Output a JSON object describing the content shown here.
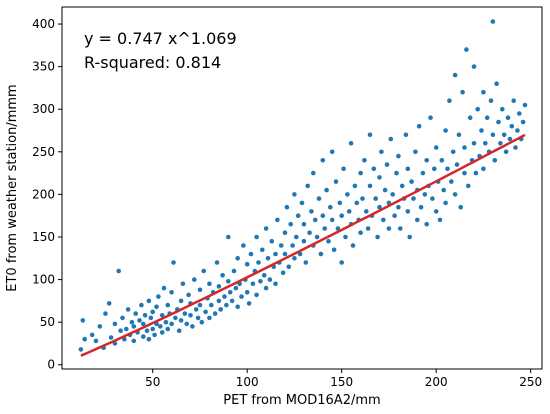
{
  "chart_data": {
    "type": "scatter",
    "title": "",
    "xlabel": "PET from MOD16A2/mm",
    "ylabel": "ET0 from weather station/mmm",
    "xlim": [
      2,
      256
    ],
    "ylim": [
      -5,
      420
    ],
    "x_ticks": [
      50,
      100,
      150,
      200,
      250
    ],
    "y_ticks": [
      0,
      50,
      100,
      150,
      200,
      250,
      300,
      350,
      400
    ],
    "grid": false,
    "annotations": [
      "y = 0.747 x^1.069",
      "R-squared: 0.814"
    ],
    "fit": {
      "a": 0.747,
      "b": 1.069,
      "x_range": [
        12,
        247
      ]
    },
    "colors": {
      "points": "#1f77b4",
      "fit_line": "#d62728"
    },
    "points": [
      [
        12,
        18
      ],
      [
        13,
        52
      ],
      [
        14,
        30
      ],
      [
        18,
        35
      ],
      [
        20,
        28
      ],
      [
        22,
        45
      ],
      [
        24,
        20
      ],
      [
        25,
        60
      ],
      [
        27,
        72
      ],
      [
        28,
        32
      ],
      [
        30,
        25
      ],
      [
        30,
        48
      ],
      [
        32,
        110
      ],
      [
        33,
        40
      ],
      [
        34,
        55
      ],
      [
        35,
        30
      ],
      [
        36,
        42
      ],
      [
        37,
        65
      ],
      [
        38,
        35
      ],
      [
        39,
        50
      ],
      [
        40,
        28
      ],
      [
        40,
        45
      ],
      [
        41,
        60
      ],
      [
        42,
        38
      ],
      [
        43,
        52
      ],
      [
        44,
        70
      ],
      [
        45,
        33
      ],
      [
        45,
        48
      ],
      [
        46,
        58
      ],
      [
        47,
        40
      ],
      [
        48,
        75
      ],
      [
        48,
        30
      ],
      [
        49,
        55
      ],
      [
        50,
        42
      ],
      [
        50,
        62
      ],
      [
        51,
        35
      ],
      [
        52,
        68
      ],
      [
        52,
        48
      ],
      [
        53,
        80
      ],
      [
        54,
        45
      ],
      [
        55,
        38
      ],
      [
        55,
        58
      ],
      [
        56,
        90
      ],
      [
        57,
        50
      ],
      [
        58,
        42
      ],
      [
        58,
        70
      ],
      [
        59,
        60
      ],
      [
        60,
        48
      ],
      [
        60,
        85
      ],
      [
        61,
        120
      ],
      [
        62,
        55
      ],
      [
        63,
        65
      ],
      [
        64,
        40
      ],
      [
        65,
        75
      ],
      [
        65,
        52
      ],
      [
        66,
        95
      ],
      [
        67,
        60
      ],
      [
        68,
        48
      ],
      [
        69,
        82
      ],
      [
        70,
        58
      ],
      [
        70,
        72
      ],
      [
        71,
        45
      ],
      [
        72,
        100
      ],
      [
        73,
        65
      ],
      [
        74,
        55
      ],
      [
        75,
        88
      ],
      [
        75,
        70
      ],
      [
        76,
        50
      ],
      [
        77,
        110
      ],
      [
        78,
        62
      ],
      [
        79,
        78
      ],
      [
        80,
        55
      ],
      [
        80,
        95
      ],
      [
        81,
        70
      ],
      [
        82,
        85
      ],
      [
        83,
        60
      ],
      [
        84,
        120
      ],
      [
        85,
        75
      ],
      [
        85,
        92
      ],
      [
        86,
        65
      ],
      [
        87,
        105
      ],
      [
        88,
        80
      ],
      [
        89,
        70
      ],
      [
        90,
        98
      ],
      [
        90,
        150
      ],
      [
        91,
        85
      ],
      [
        92,
        75
      ],
      [
        93,
        110
      ],
      [
        94,
        90
      ],
      [
        95,
        68
      ],
      [
        95,
        125
      ],
      [
        96,
        95
      ],
      [
        97,
        80
      ],
      [
        98,
        140
      ],
      [
        99,
        100
      ],
      [
        100,
        85
      ],
      [
        100,
        118
      ],
      [
        101,
        72
      ],
      [
        102,
        130
      ],
      [
        103,
        95
      ],
      [
        104,
        110
      ],
      [
        105,
        82
      ],
      [
        105,
        150
      ],
      [
        106,
        120
      ],
      [
        107,
        98
      ],
      [
        108,
        135
      ],
      [
        109,
        105
      ],
      [
        110,
        90
      ],
      [
        110,
        160
      ],
      [
        111,
        125
      ],
      [
        112,
        100
      ],
      [
        113,
        145
      ],
      [
        114,
        115
      ],
      [
        115,
        130
      ],
      [
        115,
        95
      ],
      [
        116,
        170
      ],
      [
        117,
        120
      ],
      [
        118,
        140
      ],
      [
        119,
        108
      ],
      [
        120,
        155
      ],
      [
        120,
        130
      ],
      [
        121,
        185
      ],
      [
        122,
        115
      ],
      [
        123,
        165
      ],
      [
        124,
        140
      ],
      [
        125,
        125
      ],
      [
        125,
        200
      ],
      [
        126,
        150
      ],
      [
        127,
        175
      ],
      [
        128,
        130
      ],
      [
        129,
        190
      ],
      [
        130,
        145
      ],
      [
        130,
        165
      ],
      [
        131,
        120
      ],
      [
        132,
        210
      ],
      [
        133,
        155
      ],
      [
        134,
        180
      ],
      [
        135,
        140
      ],
      [
        135,
        225
      ],
      [
        136,
        170
      ],
      [
        137,
        150
      ],
      [
        138,
        195
      ],
      [
        139,
        130
      ],
      [
        140,
        175
      ],
      [
        140,
        240
      ],
      [
        141,
        160
      ],
      [
        142,
        205
      ],
      [
        143,
        145
      ],
      [
        144,
        185
      ],
      [
        145,
        170
      ],
      [
        145,
        250
      ],
      [
        146,
        135
      ],
      [
        147,
        215
      ],
      [
        148,
        160
      ],
      [
        149,
        190
      ],
      [
        150,
        175
      ],
      [
        150,
        120
      ],
      [
        151,
        230
      ],
      [
        152,
        150
      ],
      [
        153,
        200
      ],
      [
        154,
        180
      ],
      [
        155,
        165
      ],
      [
        155,
        260
      ],
      [
        156,
        140
      ],
      [
        157,
        210
      ],
      [
        158,
        190
      ],
      [
        159,
        170
      ],
      [
        160,
        225
      ],
      [
        160,
        155
      ],
      [
        161,
        195
      ],
      [
        162,
        240
      ],
      [
        163,
        180
      ],
      [
        164,
        160
      ],
      [
        165,
        210
      ],
      [
        165,
        270
      ],
      [
        166,
        175
      ],
      [
        167,
        230
      ],
      [
        168,
        195
      ],
      [
        169,
        150
      ],
      [
        170,
        220
      ],
      [
        170,
        185
      ],
      [
        171,
        250
      ],
      [
        172,
        170
      ],
      [
        173,
        205
      ],
      [
        174,
        235
      ],
      [
        175,
        190
      ],
      [
        175,
        160
      ],
      [
        176,
        265
      ],
      [
        177,
        200
      ],
      [
        178,
        175
      ],
      [
        179,
        225
      ],
      [
        180,
        185
      ],
      [
        180,
        245
      ],
      [
        181,
        160
      ],
      [
        182,
        210
      ],
      [
        183,
        195
      ],
      [
        184,
        270
      ],
      [
        185,
        180
      ],
      [
        185,
        230
      ],
      [
        186,
        150
      ],
      [
        187,
        215
      ],
      [
        188,
        195
      ],
      [
        189,
        250
      ],
      [
        190,
        170
      ],
      [
        190,
        205
      ],
      [
        191,
        280
      ],
      [
        192,
        185
      ],
      [
        193,
        225
      ],
      [
        194,
        200
      ],
      [
        195,
        240
      ],
      [
        195,
        165
      ],
      [
        196,
        210
      ],
      [
        197,
        290
      ],
      [
        198,
        195
      ],
      [
        199,
        230
      ],
      [
        200,
        180
      ],
      [
        200,
        255
      ],
      [
        201,
        215
      ],
      [
        202,
        170
      ],
      [
        203,
        240
      ],
      [
        204,
        205
      ],
      [
        205,
        275
      ],
      [
        205,
        190
      ],
      [
        206,
        230
      ],
      [
        207,
        310
      ],
      [
        208,
        215
      ],
      [
        209,
        250
      ],
      [
        210,
        200
      ],
      [
        210,
        340
      ],
      [
        211,
        235
      ],
      [
        212,
        270
      ],
      [
        213,
        185
      ],
      [
        214,
        320
      ],
      [
        215,
        225
      ],
      [
        215,
        255
      ],
      [
        216,
        370
      ],
      [
        217,
        210
      ],
      [
        218,
        290
      ],
      [
        219,
        240
      ],
      [
        220,
        260
      ],
      [
        220,
        350
      ],
      [
        221,
        225
      ],
      [
        222,
        300
      ],
      [
        223,
        245
      ],
      [
        224,
        275
      ],
      [
        225,
        230
      ],
      [
        225,
        320
      ],
      [
        226,
        260
      ],
      [
        227,
        290
      ],
      [
        228,
        250
      ],
      [
        229,
        310
      ],
      [
        230,
        403
      ],
      [
        230,
        270
      ],
      [
        231,
        240
      ],
      [
        232,
        330
      ],
      [
        233,
        285
      ],
      [
        234,
        260
      ],
      [
        235,
        300
      ],
      [
        236,
        270
      ],
      [
        237,
        250
      ],
      [
        238,
        290
      ],
      [
        239,
        265
      ],
      [
        240,
        280
      ],
      [
        241,
        310
      ],
      [
        242,
        255
      ],
      [
        243,
        275
      ],
      [
        244,
        295
      ],
      [
        245,
        265
      ],
      [
        246,
        285
      ],
      [
        247,
        305
      ]
    ]
  }
}
